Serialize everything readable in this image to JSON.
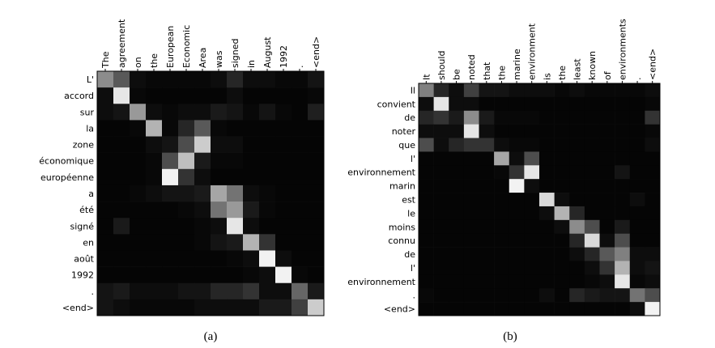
{
  "chart_data": [
    {
      "type": "heatmap",
      "caption": "(a)",
      "x": [
        "The",
        "agreement",
        "on",
        "the",
        "European",
        "Economic",
        "Area",
        "was",
        "signed",
        "in",
        "August",
        "1992",
        ".",
        "<end>"
      ],
      "y": [
        "L'",
        "accord",
        "sur",
        "la",
        "zone",
        "économique",
        "européenne",
        "a",
        "été",
        "signé",
        "en",
        "août",
        "1992",
        ".",
        "<end>"
      ],
      "values": [
        [
          0.55,
          0.35,
          0.05,
          0.03,
          0.03,
          0.03,
          0.03,
          0.05,
          0.15,
          0.05,
          0.05,
          0.03,
          0.03,
          0.08
        ],
        [
          0.05,
          0.9,
          0.03,
          0.02,
          0.02,
          0.02,
          0.02,
          0.02,
          0.05,
          0.02,
          0.02,
          0.02,
          0.02,
          0.03
        ],
        [
          0.05,
          0.08,
          0.6,
          0.05,
          0.03,
          0.05,
          0.05,
          0.1,
          0.08,
          0.03,
          0.08,
          0.03,
          0.02,
          0.12
        ],
        [
          0.02,
          0.02,
          0.03,
          0.7,
          0.03,
          0.15,
          0.35,
          0.03,
          0.02,
          0.02,
          0.02,
          0.02,
          0.02,
          0.02
        ],
        [
          0.02,
          0.02,
          0.02,
          0.05,
          0.08,
          0.3,
          0.8,
          0.05,
          0.05,
          0.02,
          0.02,
          0.02,
          0.02,
          0.02
        ],
        [
          0.02,
          0.02,
          0.02,
          0.03,
          0.3,
          0.75,
          0.1,
          0.03,
          0.03,
          0.02,
          0.02,
          0.02,
          0.02,
          0.02
        ],
        [
          0.02,
          0.02,
          0.02,
          0.03,
          0.95,
          0.2,
          0.05,
          0.02,
          0.02,
          0.02,
          0.02,
          0.02,
          0.02,
          0.02
        ],
        [
          0.02,
          0.02,
          0.03,
          0.05,
          0.08,
          0.08,
          0.1,
          0.65,
          0.45,
          0.05,
          0.03,
          0.02,
          0.02,
          0.02
        ],
        [
          0.02,
          0.02,
          0.02,
          0.02,
          0.02,
          0.03,
          0.05,
          0.45,
          0.6,
          0.1,
          0.03,
          0.02,
          0.02,
          0.02
        ],
        [
          0.02,
          0.1,
          0.02,
          0.02,
          0.02,
          0.02,
          0.03,
          0.05,
          0.9,
          0.05,
          0.02,
          0.02,
          0.02,
          0.02
        ],
        [
          0.02,
          0.02,
          0.02,
          0.02,
          0.02,
          0.02,
          0.03,
          0.08,
          0.1,
          0.7,
          0.2,
          0.02,
          0.02,
          0.02
        ],
        [
          0.02,
          0.02,
          0.02,
          0.02,
          0.02,
          0.02,
          0.02,
          0.02,
          0.03,
          0.05,
          0.95,
          0.05,
          0.02,
          0.02
        ],
        [
          0.02,
          0.02,
          0.02,
          0.02,
          0.02,
          0.02,
          0.02,
          0.02,
          0.02,
          0.03,
          0.05,
          0.95,
          0.03,
          0.02
        ],
        [
          0.08,
          0.1,
          0.05,
          0.05,
          0.05,
          0.08,
          0.08,
          0.15,
          0.15,
          0.2,
          0.05,
          0.05,
          0.4,
          0.1
        ],
        [
          0.08,
          0.05,
          0.03,
          0.03,
          0.03,
          0.03,
          0.05,
          0.05,
          0.05,
          0.05,
          0.1,
          0.1,
          0.25,
          0.8
        ]
      ]
    },
    {
      "type": "heatmap",
      "caption": "(b)",
      "x": [
        "It",
        "should",
        "be",
        "noted",
        "that",
        "the",
        "marine",
        "environment",
        "is",
        "the",
        "least",
        "known",
        "of",
        "environments",
        ".",
        "<end>"
      ],
      "y": [
        "Il",
        "convient",
        "de",
        "noter",
        "que",
        "l'",
        "environnement",
        "marin",
        "est",
        "le",
        "moins",
        "connu",
        "de",
        "l'",
        "environnement",
        ".",
        "<end>"
      ],
      "values": [
        [
          0.5,
          0.15,
          0.05,
          0.25,
          0.08,
          0.08,
          0.05,
          0.05,
          0.05,
          0.03,
          0.05,
          0.03,
          0.03,
          0.03,
          0.03,
          0.05
        ],
        [
          0.05,
          0.9,
          0.05,
          0.05,
          0.02,
          0.02,
          0.02,
          0.02,
          0.02,
          0.02,
          0.02,
          0.02,
          0.02,
          0.02,
          0.02,
          0.03
        ],
        [
          0.15,
          0.2,
          0.1,
          0.55,
          0.1,
          0.03,
          0.03,
          0.03,
          0.02,
          0.02,
          0.02,
          0.02,
          0.02,
          0.02,
          0.02,
          0.2
        ],
        [
          0.05,
          0.05,
          0.05,
          0.9,
          0.05,
          0.02,
          0.02,
          0.02,
          0.02,
          0.02,
          0.02,
          0.02,
          0.02,
          0.02,
          0.02,
          0.03
        ],
        [
          0.3,
          0.05,
          0.15,
          0.2,
          0.2,
          0.05,
          0.03,
          0.03,
          0.02,
          0.02,
          0.02,
          0.02,
          0.02,
          0.02,
          0.02,
          0.05
        ],
        [
          0.02,
          0.02,
          0.02,
          0.02,
          0.02,
          0.65,
          0.05,
          0.3,
          0.02,
          0.02,
          0.02,
          0.02,
          0.02,
          0.02,
          0.02,
          0.02
        ],
        [
          0.02,
          0.02,
          0.02,
          0.02,
          0.02,
          0.03,
          0.2,
          0.9,
          0.02,
          0.02,
          0.02,
          0.02,
          0.02,
          0.08,
          0.02,
          0.02
        ],
        [
          0.02,
          0.02,
          0.02,
          0.02,
          0.02,
          0.02,
          0.95,
          0.05,
          0.02,
          0.02,
          0.02,
          0.02,
          0.02,
          0.02,
          0.02,
          0.02
        ],
        [
          0.02,
          0.02,
          0.02,
          0.02,
          0.02,
          0.02,
          0.02,
          0.02,
          0.85,
          0.05,
          0.02,
          0.02,
          0.02,
          0.02,
          0.05,
          0.02
        ],
        [
          0.02,
          0.02,
          0.02,
          0.02,
          0.02,
          0.02,
          0.02,
          0.02,
          0.05,
          0.7,
          0.15,
          0.02,
          0.02,
          0.02,
          0.02,
          0.02
        ],
        [
          0.02,
          0.02,
          0.02,
          0.02,
          0.02,
          0.02,
          0.02,
          0.02,
          0.02,
          0.05,
          0.55,
          0.3,
          0.02,
          0.1,
          0.02,
          0.02
        ],
        [
          0.02,
          0.02,
          0.02,
          0.02,
          0.02,
          0.02,
          0.02,
          0.02,
          0.02,
          0.02,
          0.15,
          0.85,
          0.05,
          0.3,
          0.02,
          0.02
        ],
        [
          0.02,
          0.02,
          0.02,
          0.02,
          0.02,
          0.02,
          0.02,
          0.02,
          0.02,
          0.02,
          0.05,
          0.15,
          0.35,
          0.5,
          0.05,
          0.05
        ],
        [
          0.02,
          0.02,
          0.02,
          0.02,
          0.02,
          0.02,
          0.02,
          0.02,
          0.02,
          0.02,
          0.02,
          0.05,
          0.2,
          0.7,
          0.05,
          0.08
        ],
        [
          0.02,
          0.02,
          0.02,
          0.02,
          0.02,
          0.02,
          0.02,
          0.02,
          0.02,
          0.02,
          0.02,
          0.03,
          0.05,
          0.9,
          0.03,
          0.05
        ],
        [
          0.03,
          0.02,
          0.02,
          0.02,
          0.02,
          0.02,
          0.02,
          0.02,
          0.05,
          0.02,
          0.15,
          0.1,
          0.08,
          0.08,
          0.45,
          0.3
        ],
        [
          0.02,
          0.02,
          0.02,
          0.02,
          0.02,
          0.02,
          0.02,
          0.02,
          0.02,
          0.02,
          0.02,
          0.02,
          0.02,
          0.02,
          0.05,
          0.95
        ]
      ]
    }
  ]
}
